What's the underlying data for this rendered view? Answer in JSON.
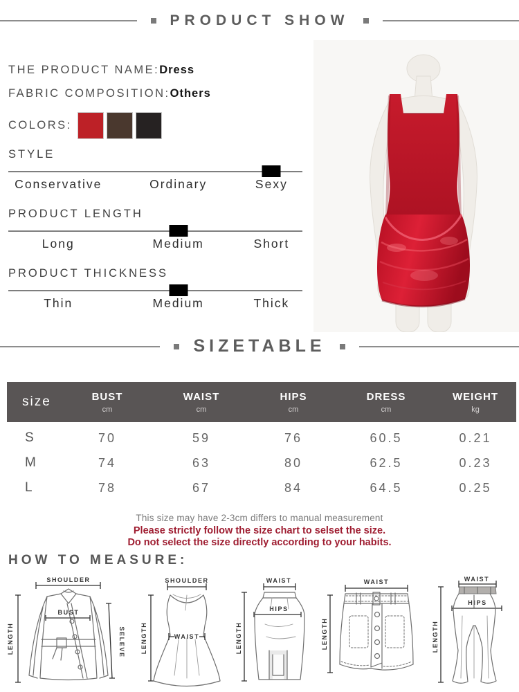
{
  "header": {
    "title": "PRODUCT SHOW"
  },
  "product": {
    "name_label": "THE PRODUCT NAME:",
    "name_value": "Dress",
    "fabric_label": "FABRIC COMPOSITION:",
    "fabric_value": "Others",
    "colors_label": "COLORS:",
    "colors": [
      "#bd2127",
      "#4a382e",
      "#262222"
    ],
    "attributes": [
      {
        "label": "STYLE",
        "options": [
          "Conservative",
          "Ordinary",
          "Sexy"
        ],
        "selected": 2
      },
      {
        "label": "PRODUCT LENGTH",
        "options": [
          "Long",
          "Medium",
          "Short"
        ],
        "selected": 1
      },
      {
        "label": "PRODUCT THICKNESS",
        "options": [
          "Thin",
          "Medium",
          "Thick"
        ],
        "selected": 1
      }
    ]
  },
  "sizetable": {
    "title": "SIZETABLE",
    "header_bg": "#595555",
    "columns": [
      {
        "label": "size",
        "unit": ""
      },
      {
        "label": "BUST",
        "unit": "cm"
      },
      {
        "label": "WAIST",
        "unit": "cm"
      },
      {
        "label": "HIPS",
        "unit": "cm"
      },
      {
        "label": "DRESS",
        "unit": "cm"
      },
      {
        "label": "WEIGHT",
        "unit": "kg"
      }
    ],
    "rows": [
      [
        "S",
        "70",
        "59",
        "76",
        "60.5",
        "0.21"
      ],
      [
        "M",
        "74",
        "63",
        "80",
        "62.5",
        "0.23"
      ],
      [
        "L",
        "78",
        "67",
        "84",
        "64.5",
        "0.25"
      ]
    ],
    "notes": {
      "measure_note": "This size may have 2-3cm differs to manual measurement",
      "warn1": "Please strictly follow the size chart to selset the size.",
      "warn2": "Do not select the size directly according to your habits.",
      "color": "#9f1d31"
    }
  },
  "measure": {
    "title": "HOW TO MEASURE:",
    "diagrams": [
      {
        "name": "jacket",
        "labels": {
          "shoulder": "SHOULDER",
          "length": "LENGTH",
          "bust": "BUST",
          "sleeve": "SELEVE"
        }
      },
      {
        "name": "dress",
        "labels": {
          "shoulder": "SHOULDER",
          "length": "LENGTH",
          "waist": "WAIST"
        }
      },
      {
        "name": "pencil-skirt",
        "labels": {
          "waist": "WAIST",
          "hips": "HIPS",
          "length": "LENGTH"
        }
      },
      {
        "name": "mini-skirt",
        "labels": {
          "waist": "WAIST",
          "length": "LENGTH"
        }
      },
      {
        "name": "pants",
        "labels": {
          "waist": "WAIST",
          "hips": "HIPS",
          "length": "LENGTH"
        }
      }
    ]
  }
}
